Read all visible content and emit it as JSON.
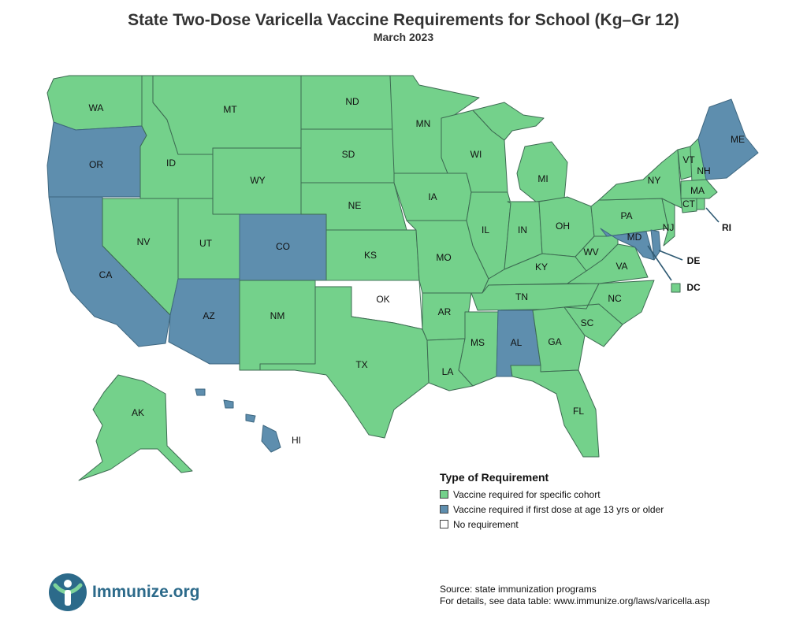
{
  "header": {
    "title": "State Two-Dose Varicella Vaccine Requirements for School (Kg–Gr 12)",
    "subtitle": "March 2023"
  },
  "colors": {
    "cohort": "#74d18b",
    "age13": "#5e8eae",
    "none": "#ffffff",
    "border": "#3d6b52",
    "brand": "#2c6a8a"
  },
  "states": {
    "WA": {
      "label": "WA",
      "category": "cohort"
    },
    "OR": {
      "label": "OR",
      "category": "age13"
    },
    "CA": {
      "label": "CA",
      "category": "age13"
    },
    "ID": {
      "label": "ID",
      "category": "cohort"
    },
    "NV": {
      "label": "NV",
      "category": "cohort"
    },
    "MT": {
      "label": "MT",
      "category": "cohort"
    },
    "WY": {
      "label": "WY",
      "category": "cohort"
    },
    "UT": {
      "label": "UT",
      "category": "cohort"
    },
    "CO": {
      "label": "CO",
      "category": "age13"
    },
    "AZ": {
      "label": "AZ",
      "category": "age13"
    },
    "NM": {
      "label": "NM",
      "category": "cohort"
    },
    "ND": {
      "label": "ND",
      "category": "cohort"
    },
    "SD": {
      "label": "SD",
      "category": "cohort"
    },
    "NE": {
      "label": "NE",
      "category": "cohort"
    },
    "KS": {
      "label": "KS",
      "category": "cohort"
    },
    "OK": {
      "label": "OK",
      "category": "none"
    },
    "TX": {
      "label": "TX",
      "category": "cohort"
    },
    "MN": {
      "label": "MN",
      "category": "cohort"
    },
    "IA": {
      "label": "IA",
      "category": "cohort"
    },
    "MO": {
      "label": "MO",
      "category": "cohort"
    },
    "AR": {
      "label": "AR",
      "category": "cohort"
    },
    "LA": {
      "label": "LA",
      "category": "cohort"
    },
    "WI": {
      "label": "WI",
      "category": "cohort"
    },
    "IL": {
      "label": "IL",
      "category": "cohort"
    },
    "MI": {
      "label": "MI",
      "category": "cohort"
    },
    "IN": {
      "label": "IN",
      "category": "cohort"
    },
    "OH": {
      "label": "OH",
      "category": "cohort"
    },
    "KY": {
      "label": "KY",
      "category": "cohort"
    },
    "TN": {
      "label": "TN",
      "category": "cohort"
    },
    "MS": {
      "label": "MS",
      "category": "cohort"
    },
    "AL": {
      "label": "AL",
      "category": "age13"
    },
    "GA": {
      "label": "GA",
      "category": "cohort"
    },
    "FL": {
      "label": "FL",
      "category": "cohort"
    },
    "SC": {
      "label": "SC",
      "category": "cohort"
    },
    "NC": {
      "label": "NC",
      "category": "cohort"
    },
    "VA": {
      "label": "VA",
      "category": "cohort"
    },
    "WV": {
      "label": "WV",
      "category": "cohort"
    },
    "MD": {
      "label": "MD",
      "category": "age13"
    },
    "DE": {
      "label": "DE",
      "category": "age13"
    },
    "DC": {
      "label": "DC",
      "category": "cohort"
    },
    "PA": {
      "label": "PA",
      "category": "cohort"
    },
    "NJ": {
      "label": "NJ",
      "category": "cohort"
    },
    "NY": {
      "label": "NY",
      "category": "cohort"
    },
    "CT": {
      "label": "CT",
      "category": "cohort"
    },
    "RI": {
      "label": "RI",
      "category": "cohort"
    },
    "MA": {
      "label": "MA",
      "category": "cohort"
    },
    "VT": {
      "label": "VT",
      "category": "cohort"
    },
    "NH": {
      "label": "NH",
      "category": "cohort"
    },
    "ME": {
      "label": "ME",
      "category": "age13"
    },
    "AK": {
      "label": "AK",
      "category": "cohort"
    },
    "HI": {
      "label": "HI",
      "category": "age13"
    }
  },
  "legend": {
    "title": "Type of Requirement",
    "items": [
      {
        "label": "Vaccine required for specific cohort",
        "color": "#74d18b"
      },
      {
        "label": "Vaccine required if first dose at age 13 yrs or older",
        "color": "#5e8eae"
      },
      {
        "label": "No requirement",
        "color": "#ffffff"
      }
    ]
  },
  "logo": {
    "text": "Immunize.org",
    "icon": "immunize-logo-icon"
  },
  "footer": {
    "source": "Source: state immunization programs",
    "details": "For details, see data table: www.immunize.org/laws/varicella.asp"
  }
}
